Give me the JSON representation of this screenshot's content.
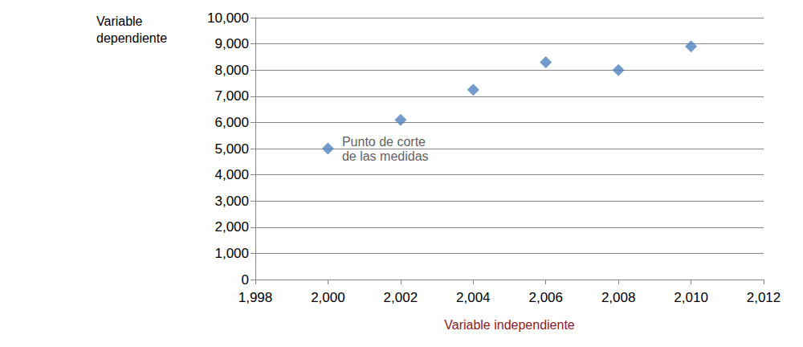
{
  "chart_data": {
    "type": "scatter",
    "x_label": "Variable independiente",
    "y_label": "Variable\ndependiente",
    "x": [
      2000,
      2002,
      2004,
      2006,
      2008,
      2010
    ],
    "values": [
      5000,
      6100,
      7250,
      8300,
      8000,
      8900
    ],
    "color": "#4f81bd",
    "marker": "diamond",
    "xlim": [
      1998,
      2012
    ],
    "xticks": [
      1998,
      2000,
      2002,
      2004,
      2006,
      2008,
      2010,
      2012
    ],
    "ylim": [
      0,
      10000
    ],
    "yticks": [
      0,
      1000,
      2000,
      3000,
      4000,
      5000,
      6000,
      7000,
      8000,
      9000,
      10000
    ],
    "grid": true,
    "annotations": [
      {
        "text": "Punto de corte\nde las medidas",
        "x": 2000,
        "y": 5000
      }
    ]
  }
}
